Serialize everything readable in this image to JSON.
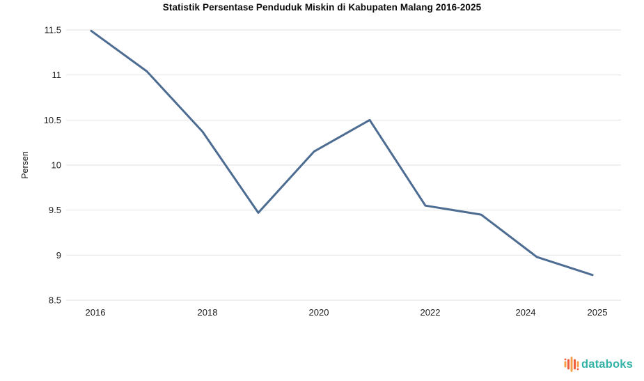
{
  "chart_data": {
    "type": "line",
    "title": "Statistik Persentase Penduduk Miskin di Kabupaten Malang 2016-2025",
    "xlabel": "",
    "ylabel": "Persen",
    "x": [
      2016,
      2017,
      2018,
      2019,
      2020,
      2021,
      2022,
      2023,
      2024,
      2025
    ],
    "series": [
      {
        "name": "Persentase penduduk miskin",
        "values": [
          11.49,
          11.04,
          10.37,
          9.47,
          10.15,
          10.5,
          9.55,
          9.45,
          8.98,
          8.78
        ]
      }
    ],
    "ylim": [
      8.5,
      11.5
    ],
    "yticks": [
      11.5,
      11,
      10.5,
      10,
      9.5,
      9,
      8.5
    ],
    "xticks": [
      2016,
      2018,
      2020,
      2022,
      2024,
      2025
    ],
    "grid": "horizontal-only",
    "legend": "none",
    "line_color": "#4d6c92",
    "grid_color": "#e2e2e2",
    "tick_color": "#1a1a1a"
  },
  "branding": {
    "logo_text": "databoks",
    "logo_text_color": "#33b3a6",
    "logo_icon_colors": [
      "#f5a04c",
      "#ef5e3f"
    ]
  }
}
